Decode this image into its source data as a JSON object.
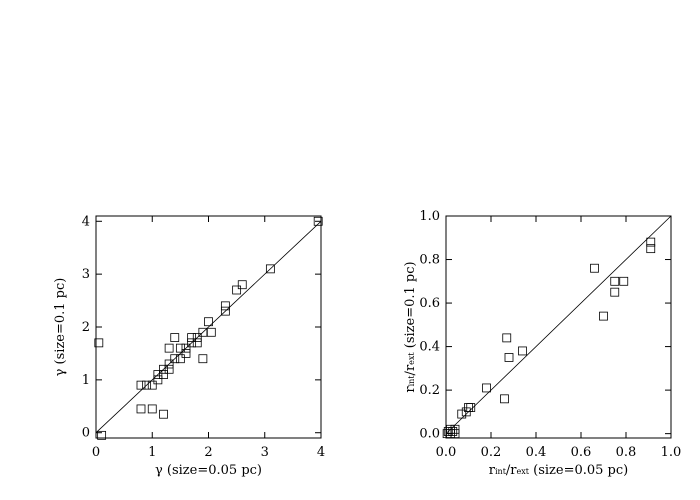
{
  "chart_data": [
    {
      "type": "scatter",
      "xlabel": "γ (size=0.05 pc)",
      "ylabel": "γ (size=0.1 pc)",
      "xlim": [
        0,
        4
      ],
      "ylim": [
        -0.1,
        4.1
      ],
      "xticks": [
        "0",
        "1",
        "2",
        "3",
        "4"
      ],
      "yticks": [
        "0",
        "1",
        "2",
        "3",
        "4"
      ],
      "reference_line": "y = x",
      "marker": "open-square",
      "points": [
        [
          0.05,
          1.7
        ],
        [
          0.1,
          -0.05
        ],
        [
          0.8,
          0.9
        ],
        [
          0.8,
          0.45
        ],
        [
          0.9,
          0.9
        ],
        [
          1.0,
          0.9
        ],
        [
          1.0,
          0.45
        ],
        [
          1.1,
          1.0
        ],
        [
          1.1,
          1.1
        ],
        [
          1.2,
          1.1
        ],
        [
          1.2,
          1.2
        ],
        [
          1.2,
          0.35
        ],
        [
          1.3,
          1.6
        ],
        [
          1.3,
          1.3
        ],
        [
          1.3,
          1.2
        ],
        [
          1.4,
          1.8
        ],
        [
          1.4,
          1.4
        ],
        [
          1.5,
          1.6
        ],
        [
          1.5,
          1.4
        ],
        [
          1.6,
          1.6
        ],
        [
          1.6,
          1.5
        ],
        [
          1.7,
          1.7
        ],
        [
          1.7,
          1.8
        ],
        [
          1.8,
          1.7
        ],
        [
          1.8,
          1.8
        ],
        [
          1.9,
          1.9
        ],
        [
          1.9,
          1.4
        ],
        [
          2.0,
          2.1
        ],
        [
          2.05,
          1.9
        ],
        [
          2.3,
          2.4
        ],
        [
          2.3,
          2.3
        ],
        [
          2.5,
          2.7
        ],
        [
          2.6,
          2.8
        ],
        [
          3.1,
          3.1
        ],
        [
          3.95,
          4.0
        ]
      ]
    },
    {
      "type": "scatter",
      "xlabel": "r_int/r_ext (size=0.05 pc)",
      "ylabel": "r_int/r_ext (size=0.1 pc)",
      "xlim": [
        0,
        1
      ],
      "ylim": [
        -0.02,
        1
      ],
      "xticks": [
        "0.0",
        "0.2",
        "0.4",
        "0.6",
        "0.8",
        "1.0"
      ],
      "yticks": [
        "0.0",
        "0.2",
        "0.4",
        "0.6",
        "0.8",
        "1.0"
      ],
      "reference_line": "y = x",
      "marker": "open-square",
      "points": [
        [
          0.005,
          0.0
        ],
        [
          0.01,
          0.01
        ],
        [
          0.02,
          0.0
        ],
        [
          0.02,
          0.02
        ],
        [
          0.03,
          0.01
        ],
        [
          0.04,
          0.0
        ],
        [
          0.04,
          0.02
        ],
        [
          0.07,
          0.09
        ],
        [
          0.09,
          0.1
        ],
        [
          0.1,
          0.12
        ],
        [
          0.11,
          0.12
        ],
        [
          0.18,
          0.21
        ],
        [
          0.26,
          0.16
        ],
        [
          0.27,
          0.44
        ],
        [
          0.28,
          0.35
        ],
        [
          0.34,
          0.38
        ],
        [
          0.66,
          0.76
        ],
        [
          0.7,
          0.54
        ],
        [
          0.75,
          0.65
        ],
        [
          0.75,
          0.7
        ],
        [
          0.79,
          0.7
        ],
        [
          0.91,
          0.88
        ],
        [
          0.91,
          0.85
        ]
      ]
    }
  ]
}
